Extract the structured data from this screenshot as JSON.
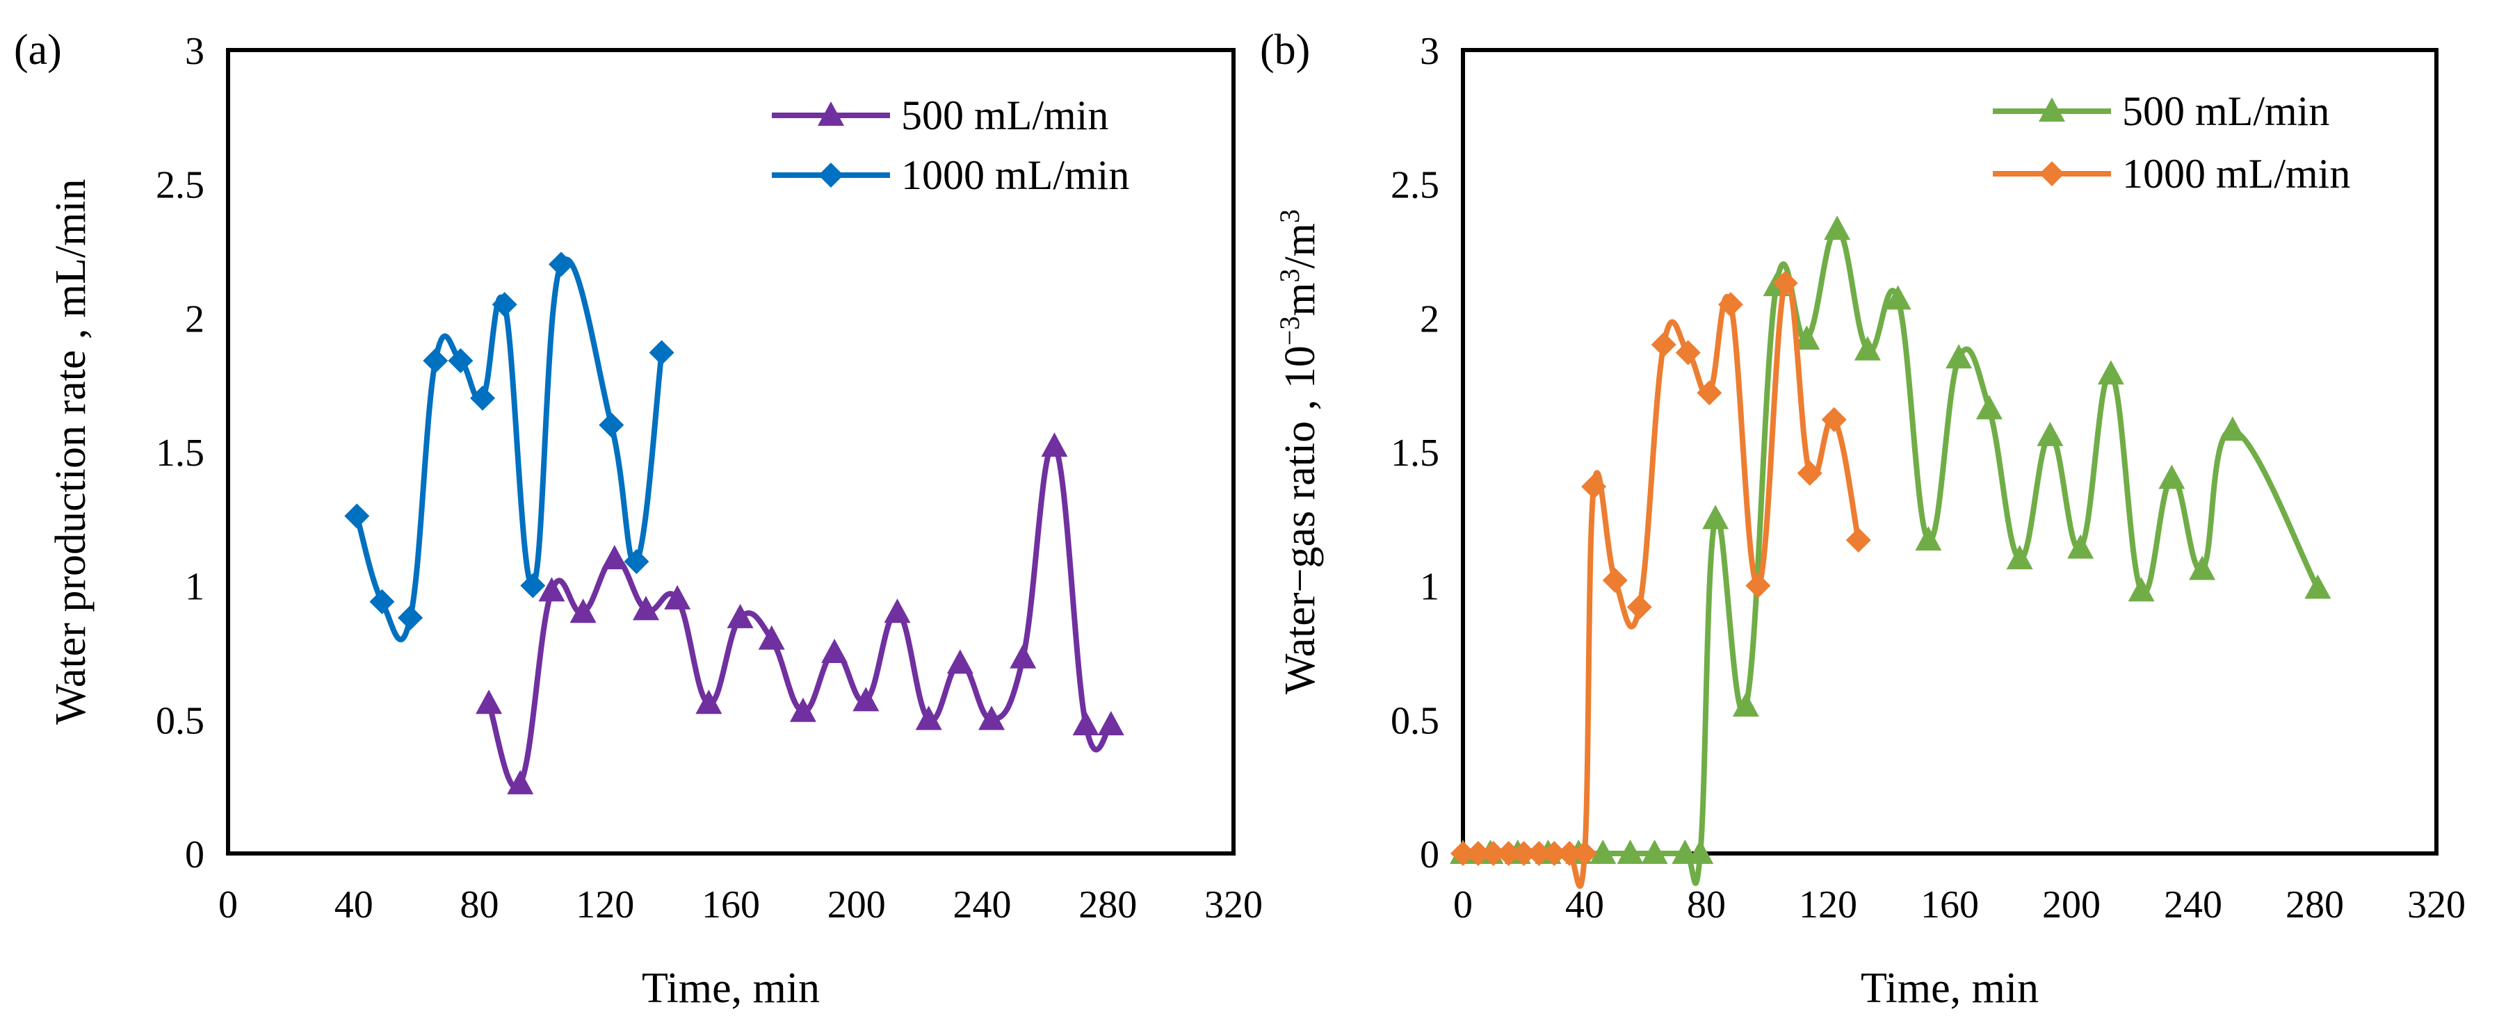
{
  "chart_data": [
    {
      "panel_label": "(a)",
      "type": "line",
      "xlabel": "Time, min",
      "ylabel": "Water production rate , mL/min",
      "xlim": [
        0,
        320
      ],
      "ylim": [
        0,
        3
      ],
      "xticks": [
        0,
        40,
        80,
        120,
        160,
        200,
        240,
        280,
        320
      ],
      "yticks": [
        0,
        0.5,
        1,
        1.5,
        2,
        2.5,
        3
      ],
      "ytick_labels": [
        "0",
        "0.5",
        "1",
        "1.5",
        "2",
        "2.5",
        "3"
      ],
      "legend_position": "top-right",
      "smooth": true,
      "series": [
        {
          "name": "500 mL/min",
          "color": "#7030a0",
          "marker": "triangle",
          "x": [
            83,
            93,
            103,
            113,
            123,
            133,
            143,
            153,
            163,
            173,
            183,
            193,
            203,
            213,
            223,
            233,
            243,
            253,
            263,
            273,
            281
          ],
          "y": [
            0.56,
            0.26,
            0.98,
            0.9,
            1.1,
            0.91,
            0.95,
            0.56,
            0.88,
            0.8,
            0.53,
            0.75,
            0.57,
            0.9,
            0.5,
            0.71,
            0.5,
            0.73,
            1.52,
            0.48,
            0.48
          ]
        },
        {
          "name": "1000 mL/min",
          "color": "#0070c0",
          "marker": "diamond",
          "x": [
            41,
            49,
            58,
            66,
            74,
            81,
            88,
            97,
            106,
            122,
            130,
            138
          ],
          "y": [
            1.26,
            0.94,
            0.88,
            1.84,
            1.84,
            1.7,
            2.05,
            1.0,
            2.2,
            1.6,
            1.09,
            1.87
          ]
        }
      ]
    },
    {
      "panel_label": "(b)",
      "type": "line",
      "xlabel": "Time, min",
      "ylabel": "Water−gas ratio , 10−3m3/m3",
      "ylabel_parts": {
        "main": "Water−gas ratio , 10",
        "exp1": "−3",
        "mid": "m",
        "exp2": "3",
        "mid2": "/m",
        "exp3": "3"
      },
      "xlim": [
        0,
        320
      ],
      "ylim": [
        0,
        3
      ],
      "xticks": [
        0,
        40,
        80,
        120,
        160,
        200,
        240,
        280,
        320
      ],
      "yticks": [
        0,
        0.5,
        1,
        1.5,
        2,
        2.5,
        3
      ],
      "ytick_labels": [
        "0",
        "0.5",
        "1",
        "1.5",
        "2",
        "2.5",
        "3"
      ],
      "legend_position": "top-right",
      "smooth": true,
      "series": [
        {
          "name": "500 mL/min",
          "color": "#70ad47",
          "marker": "triangle",
          "x": [
            0,
            9,
            18,
            28,
            38,
            46,
            55,
            63,
            73,
            78,
            83,
            93,
            103,
            113,
            123,
            133,
            143,
            153,
            163,
            173,
            183,
            193,
            203,
            213,
            223,
            233,
            243,
            253,
            281
          ],
          "y": [
            0,
            0,
            0,
            0,
            0,
            0,
            0,
            0,
            0,
            0,
            1.25,
            0.55,
            2.12,
            1.92,
            2.33,
            1.88,
            2.07,
            1.17,
            1.85,
            1.66,
            1.1,
            1.56,
            1.14,
            1.79,
            0.98,
            1.4,
            1.06,
            1.58,
            0.99
          ]
        },
        {
          "name": "1000 mL/min",
          "color": "#ed7d31",
          "marker": "diamond",
          "x": [
            0,
            5,
            10,
            15,
            20,
            25,
            30,
            35,
            40,
            43,
            50,
            58,
            66,
            74,
            81,
            88,
            97,
            106,
            114,
            122,
            130
          ],
          "y": [
            0,
            0,
            0,
            0,
            0,
            0,
            0,
            0,
            0,
            1.37,
            1.02,
            0.92,
            1.9,
            1.87,
            1.72,
            2.05,
            1.0,
            2.13,
            1.42,
            1.62,
            1.17
          ]
        }
      ]
    }
  ]
}
